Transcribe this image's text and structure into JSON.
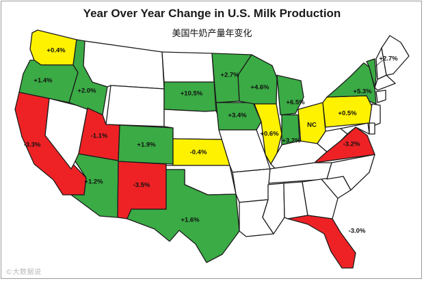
{
  "title": "Year Over Year Change in U.S. Milk Production",
  "subtitle": "美国牛奶产量年变化",
  "colors": {
    "increase": "#3bab45",
    "decrease": "#ee2225",
    "small_change": "#fff200",
    "no_data": "#ffffff",
    "border": "#1a1a1a"
  },
  "states": [
    {
      "id": "WA",
      "category": "small_change",
      "label": "+0.4%"
    },
    {
      "id": "OR",
      "category": "increase",
      "label": "+1.4%"
    },
    {
      "id": "CA",
      "category": "decrease",
      "label": "-3.3%"
    },
    {
      "id": "NV",
      "category": "no_data",
      "label": ""
    },
    {
      "id": "ID",
      "category": "increase",
      "label": "+2.0%"
    },
    {
      "id": "MT",
      "category": "no_data",
      "label": ""
    },
    {
      "id": "WY",
      "category": "no_data",
      "label": ""
    },
    {
      "id": "UT",
      "category": "decrease",
      "label": "-1.1%"
    },
    {
      "id": "AZ",
      "category": "increase",
      "label": "+1.2%"
    },
    {
      "id": "CO",
      "category": "increase",
      "label": "+1.9%"
    },
    {
      "id": "NM",
      "category": "decrease",
      "label": "-3.5%"
    },
    {
      "id": "ND",
      "category": "no_data",
      "label": ""
    },
    {
      "id": "SD",
      "category": "increase",
      "label": "+10.5%"
    },
    {
      "id": "NE",
      "category": "no_data",
      "label": ""
    },
    {
      "id": "KS",
      "category": "small_change",
      "label": "-0.4%"
    },
    {
      "id": "OK",
      "category": "no_data",
      "label": ""
    },
    {
      "id": "TX",
      "category": "increase",
      "label": "+1.6%"
    },
    {
      "id": "MN",
      "category": "increase",
      "label": "+2.7%"
    },
    {
      "id": "IA",
      "category": "increase",
      "label": "+3.4%"
    },
    {
      "id": "MO",
      "category": "no_data",
      "label": ""
    },
    {
      "id": "AR",
      "category": "no_data",
      "label": ""
    },
    {
      "id": "LA",
      "category": "no_data",
      "label": ""
    },
    {
      "id": "WI",
      "category": "increase",
      "label": "+4.6%"
    },
    {
      "id": "IL",
      "category": "small_change",
      "label": "+0.6%"
    },
    {
      "id": "MI",
      "category": "increase",
      "label": "+6.5%"
    },
    {
      "id": "IN",
      "category": "increase",
      "label": "+3.2%"
    },
    {
      "id": "OH",
      "category": "small_change",
      "label": "NC"
    },
    {
      "id": "KY",
      "category": "no_data",
      "label": ""
    },
    {
      "id": "TN",
      "category": "no_data",
      "label": ""
    },
    {
      "id": "MS",
      "category": "no_data",
      "label": ""
    },
    {
      "id": "AL",
      "category": "no_data",
      "label": ""
    },
    {
      "id": "GA",
      "category": "no_data",
      "label": ""
    },
    {
      "id": "FL",
      "category": "decrease",
      "label": "-3.0%"
    },
    {
      "id": "SC",
      "category": "no_data",
      "label": ""
    },
    {
      "id": "NC",
      "category": "no_data",
      "label": ""
    },
    {
      "id": "VA",
      "category": "decrease",
      "label": "-3.2%"
    },
    {
      "id": "WV",
      "category": "no_data",
      "label": ""
    },
    {
      "id": "PA",
      "category": "small_change",
      "label": "+0.5%"
    },
    {
      "id": "NY",
      "category": "increase",
      "label": "+5.3%"
    },
    {
      "id": "VT",
      "category": "increase",
      "label": "+2.7%"
    },
    {
      "id": "NH",
      "category": "no_data",
      "label": ""
    },
    {
      "id": "ME",
      "category": "no_data",
      "label": ""
    },
    {
      "id": "MA",
      "category": "no_data",
      "label": ""
    },
    {
      "id": "CT",
      "category": "no_data",
      "label": ""
    },
    {
      "id": "NJ",
      "category": "no_data",
      "label": ""
    },
    {
      "id": "MD",
      "category": "no_data",
      "label": ""
    },
    {
      "id": "DE",
      "category": "no_data",
      "label": ""
    }
  ],
  "watermark": "©大数据说"
}
